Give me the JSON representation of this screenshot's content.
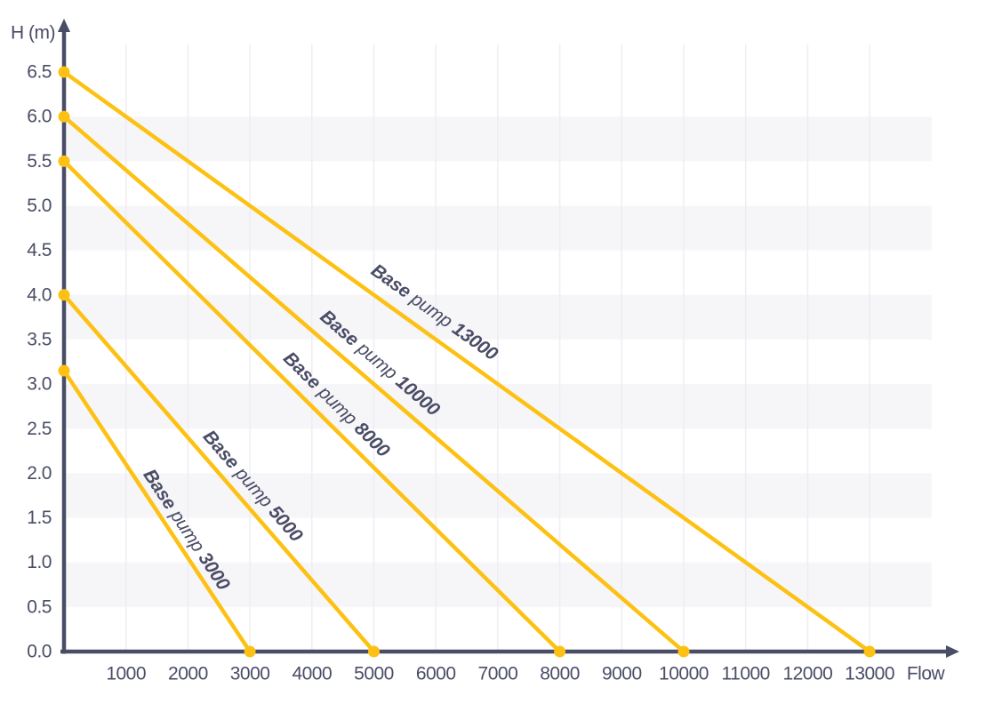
{
  "chart_data": {
    "type": "line",
    "title": "",
    "xlabel": "Flow",
    "ylabel": "H (m)",
    "xlim": [
      0,
      14000
    ],
    "ylim": [
      0,
      7
    ],
    "x_ticks": [
      1000,
      2000,
      3000,
      4000,
      5000,
      6000,
      7000,
      8000,
      9000,
      10000,
      11000,
      12000,
      13000
    ],
    "x_tick_labels": [
      "1000",
      "2000",
      "3000",
      "4000",
      "5000",
      "6000",
      "7000",
      "8000",
      "9000",
      "10000",
      "11000",
      "12000",
      "13000"
    ],
    "y_ticks": [
      0,
      0.5,
      1,
      1.5,
      2,
      2.5,
      3,
      3.5,
      4,
      4.5,
      5,
      5.5,
      6,
      6.5
    ],
    "y_tick_labels": [
      "0.0",
      "0.5",
      "1.0",
      "1.5",
      "2.0",
      "2.5",
      "3.0",
      "3.5",
      "4.0",
      "4.5",
      "5.0",
      "5.5",
      "6.0",
      "6.5"
    ],
    "grid": {
      "vertical_gridlines_at_x_ticks": true,
      "shaded_bands_h": [
        [
          0.5,
          1.0
        ],
        [
          1.5,
          2.0
        ],
        [
          2.5,
          3.0
        ],
        [
          3.5,
          4.0
        ],
        [
          4.5,
          5.0
        ],
        [
          5.5,
          6.0
        ]
      ]
    },
    "legend_position": "labels-rotated-along-lines",
    "series": [
      {
        "name": "Base pump 3000",
        "label_parts": {
          "brand": "Base",
          "word": "pump",
          "model": "3000"
        },
        "points": [
          [
            0,
            3.15
          ],
          [
            3000,
            0
          ]
        ],
        "label_t": 0.66
      },
      {
        "name": "Base pump 5000",
        "label_parts": {
          "brand": "Base",
          "word": "pump",
          "model": "5000"
        },
        "points": [
          [
            0,
            4.0
          ],
          [
            5000,
            0
          ]
        ],
        "label_t": 0.61
      },
      {
        "name": "Base pump 8000",
        "label_parts": {
          "brand": "Base",
          "word": "pump",
          "model": "8000"
        },
        "points": [
          [
            0,
            5.5
          ],
          [
            8000,
            0
          ]
        ],
        "label_t": 0.55
      },
      {
        "name": "Base pump 10000",
        "label_parts": {
          "brand": "Base",
          "word": "pump",
          "model": "10000"
        },
        "points": [
          [
            0,
            6.0
          ],
          [
            10000,
            0
          ]
        ],
        "label_t": 0.51
      },
      {
        "name": "Base pump 13000",
        "label_parts": {
          "brand": "Base",
          "word": "pump",
          "model": "13000"
        },
        "points": [
          [
            0,
            6.5
          ],
          [
            13000,
            0
          ]
        ],
        "label_t": 0.46
      }
    ],
    "colors": {
      "line": "#FDC113",
      "marker": "#FDC113",
      "axis": "#4A4D66",
      "text": "#4A4D66",
      "band": "#F6F5F8",
      "gridline": "#EFEDF2",
      "background": "#FFFFFF"
    }
  }
}
